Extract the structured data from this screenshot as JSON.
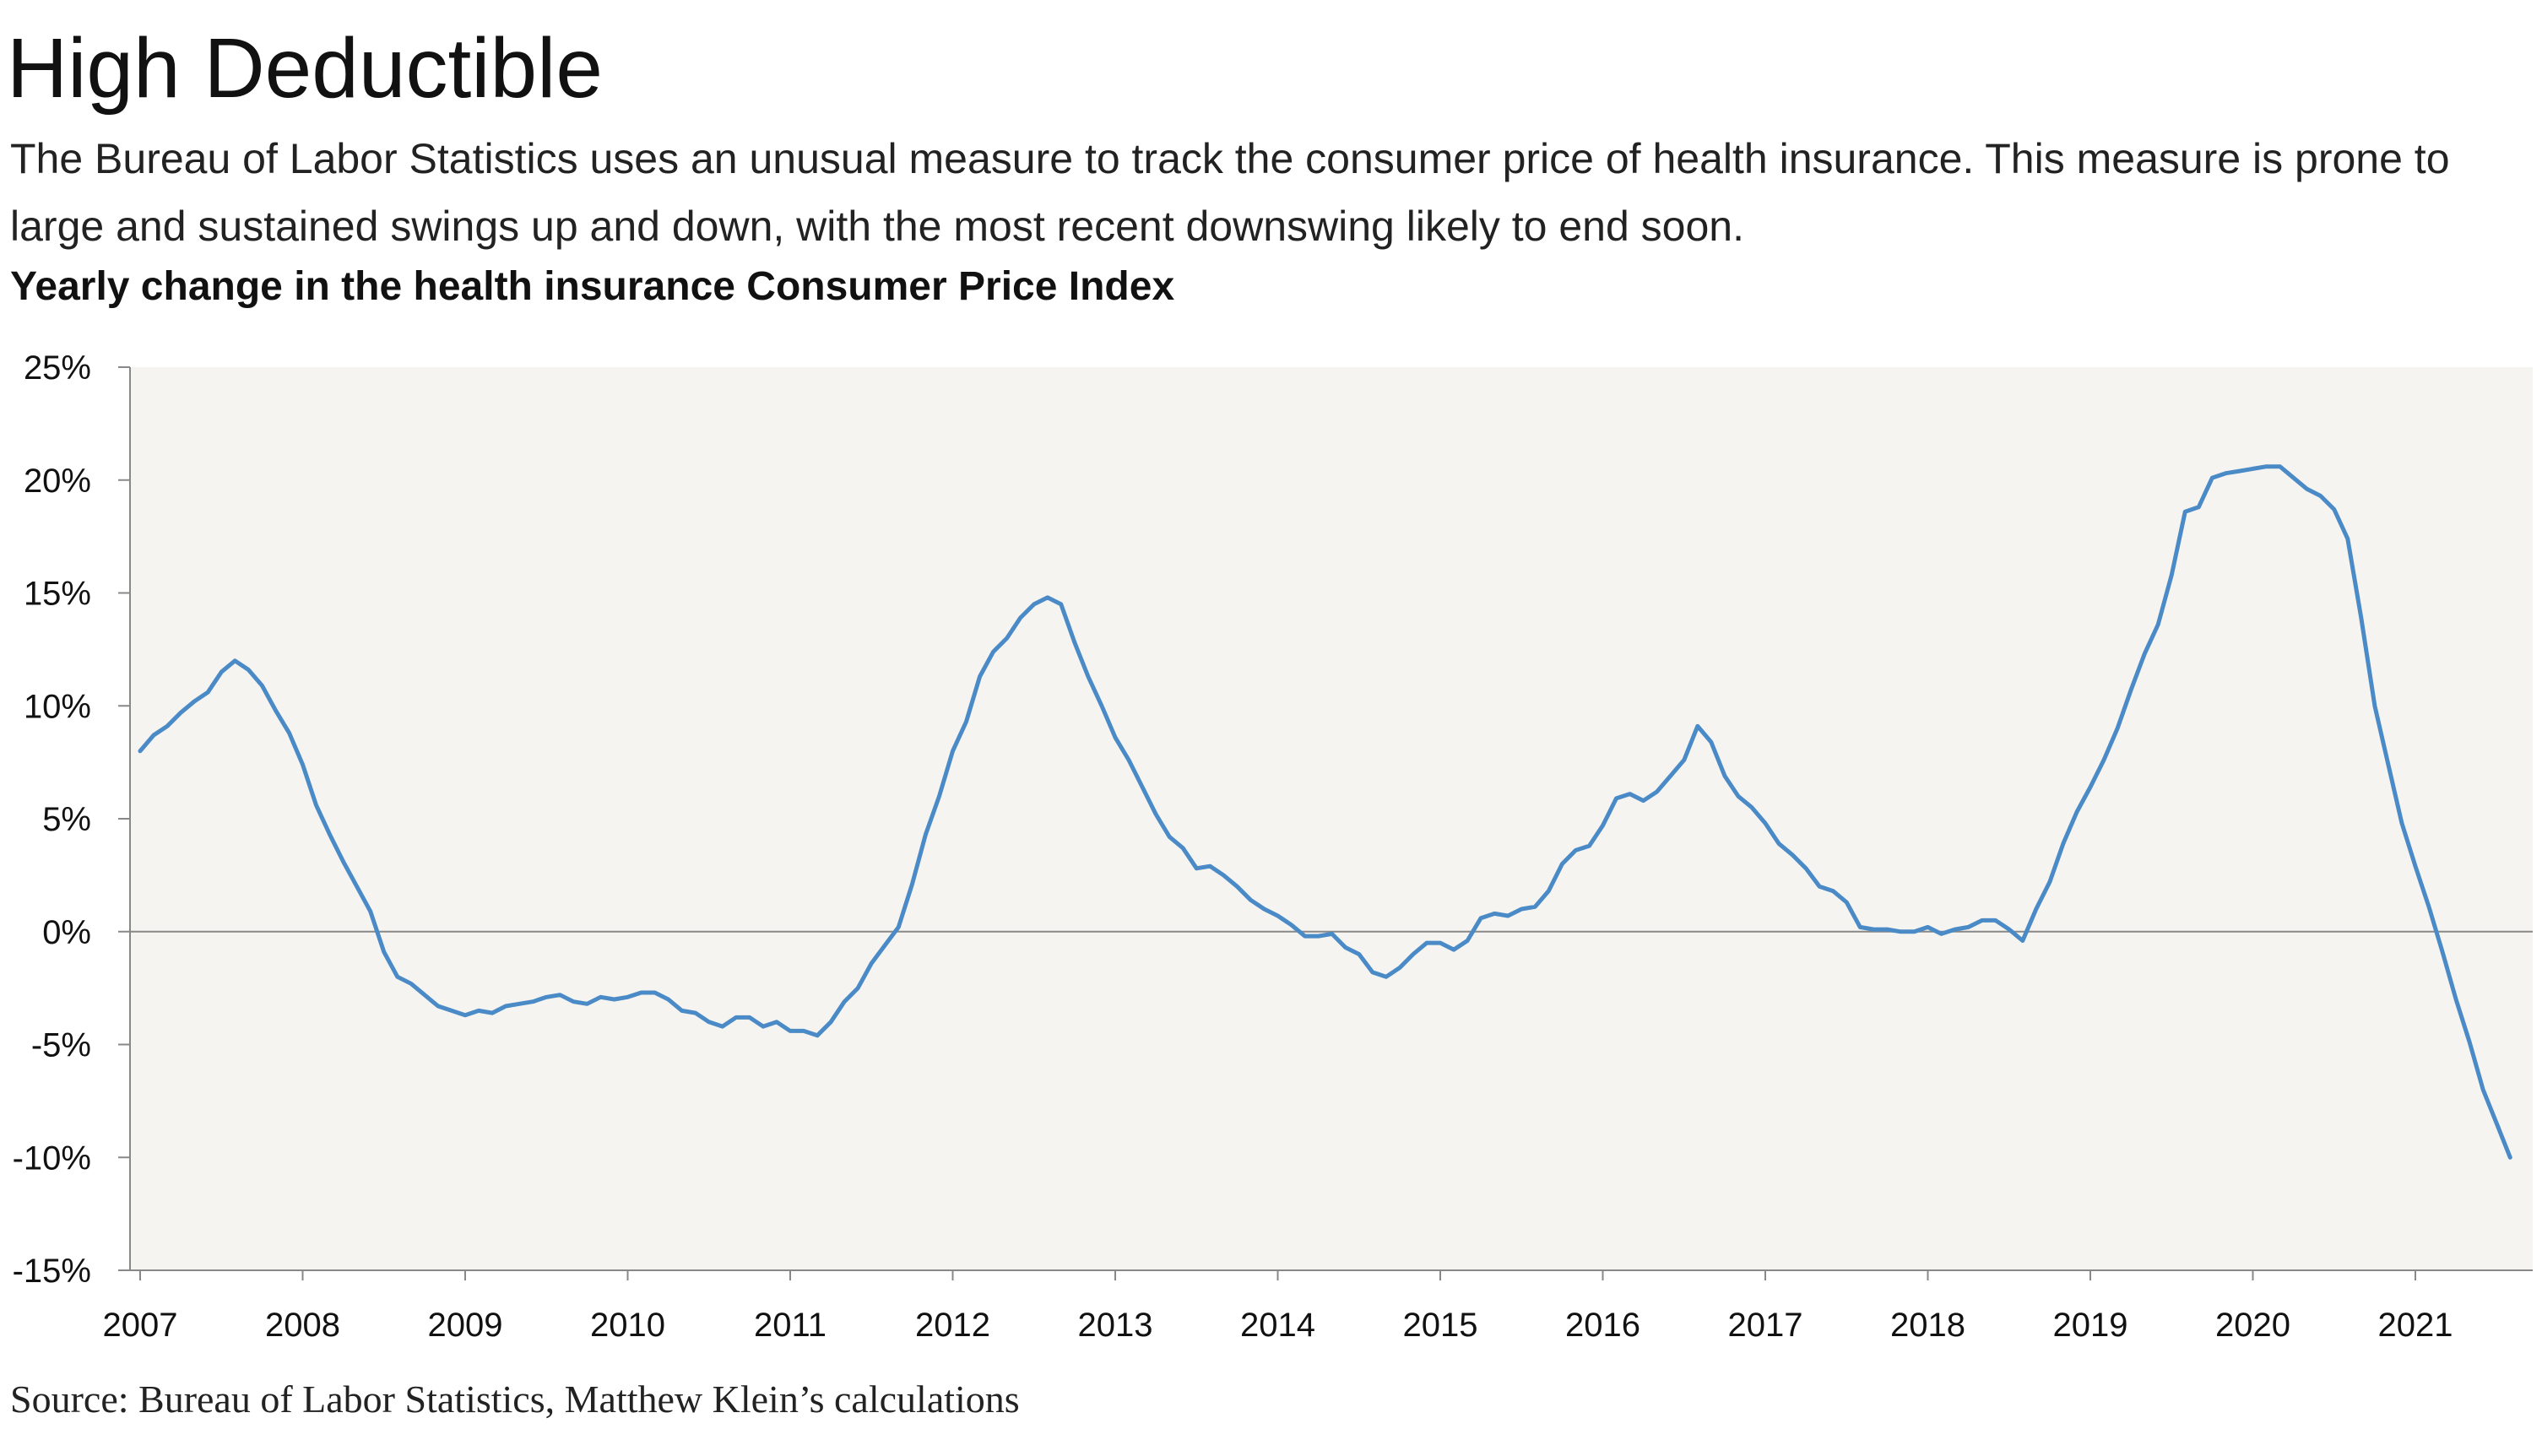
{
  "headline": "High Deductible",
  "dek": "The Bureau of Labor Statistics uses an unusual measure to track the consumer price of health insurance. This measure is prone to large and sustained swings up and down, with the most recent downswing likely to end soon.",
  "subhead": "Yearly change in the health insurance Consumer Price Index",
  "source": "Source: Bureau of Labor Statistics, Matthew Klein’s calculations",
  "colors": {
    "line": "#4a8ac6",
    "plot_background": "#f6f4f1",
    "axis": "#888888"
  },
  "chart_data": {
    "type": "line",
    "title": "Yearly change in the health insurance Consumer Price Index",
    "xlabel": "",
    "ylabel": "",
    "xlim": [
      "2007-01",
      "2021-08"
    ],
    "ylim": [
      -15,
      25
    ],
    "y_ticks": [
      25,
      20,
      15,
      10,
      5,
      0,
      -5,
      -10,
      -15
    ],
    "y_tick_labels": [
      "25%",
      "20%",
      "15%",
      "10%",
      "5%",
      "0%",
      "-5%",
      "-10%",
      "-15%"
    ],
    "x_tick_labels": [
      "2007",
      "2008",
      "2009",
      "2010",
      "2011",
      "2012",
      "2013",
      "2014",
      "2015",
      "2016",
      "2017",
      "2018",
      "2019",
      "2020",
      "2021"
    ],
    "grid": false,
    "zero_line": true,
    "series": [
      {
        "start": "2007-01",
        "frequency": "monthly",
        "values": [
          8.0,
          8.7,
          9.1,
          9.7,
          10.2,
          10.6,
          11.5,
          12.0,
          11.6,
          10.9,
          9.8,
          8.8,
          7.4,
          5.6,
          4.3,
          3.1,
          2.0,
          0.9,
          -0.9,
          -2.0,
          -2.3,
          -2.8,
          -3.3,
          -3.5,
          -3.7,
          -3.5,
          -3.6,
          -3.3,
          -3.2,
          -3.1,
          -2.9,
          -2.8,
          -3.1,
          -3.2,
          -2.9,
          -3.0,
          -2.9,
          -2.7,
          -2.7,
          -3.0,
          -3.5,
          -3.6,
          -4.0,
          -4.2,
          -3.8,
          -3.8,
          -4.2,
          -4.0,
          -4.4,
          -4.4,
          -4.6,
          -4.0,
          -3.1,
          -2.5,
          -1.4,
          -0.6,
          0.2,
          2.1,
          4.3,
          6.0,
          8.0,
          9.3,
          11.3,
          12.4,
          13.0,
          13.9,
          14.5,
          14.8,
          14.5,
          12.8,
          11.3,
          10.0,
          8.6,
          7.6,
          6.4,
          5.2,
          4.2,
          3.7,
          2.8,
          2.9,
          2.5,
          2.0,
          1.4,
          1.0,
          0.7,
          0.3,
          -0.2,
          -0.2,
          -0.1,
          -0.7,
          -1.0,
          -1.8,
          -2.0,
          -1.6,
          -1.0,
          -0.5,
          -0.5,
          -0.8,
          -0.4,
          0.6,
          0.8,
          0.7,
          1.0,
          1.1,
          1.8,
          3.0,
          3.6,
          3.8,
          4.7,
          5.9,
          6.1,
          5.8,
          6.2,
          6.9,
          7.6,
          9.1,
          8.4,
          6.9,
          6.0,
          5.5,
          4.8,
          3.9,
          3.4,
          2.8,
          2.0,
          1.8,
          1.3,
          0.2,
          0.1,
          0.1,
          0.0,
          0.0,
          0.2,
          -0.1,
          0.1,
          0.2,
          0.5,
          0.5,
          0.1,
          -0.4,
          1.0,
          2.2,
          3.9,
          5.3,
          6.4,
          7.6,
          9.0,
          10.7,
          12.3,
          13.6,
          15.8,
          18.6,
          18.8,
          20.1,
          20.3,
          20.4,
          20.5,
          20.6,
          20.6,
          20.1,
          19.6,
          19.3,
          18.7,
          17.4,
          13.9,
          10.0,
          7.4,
          4.8,
          2.9,
          1.1,
          -0.9,
          -3.0,
          -4.9,
          -7.0,
          -8.5,
          -10.0
        ]
      }
    ]
  }
}
